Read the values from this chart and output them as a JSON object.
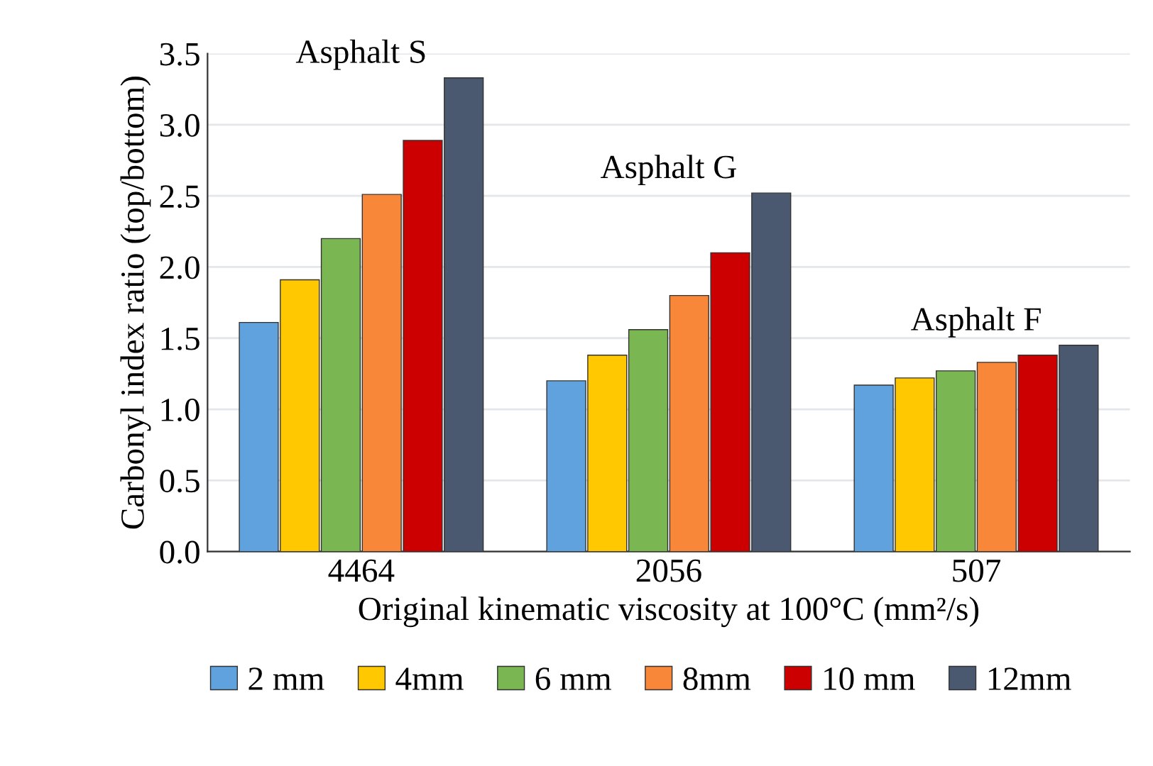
{
  "chart_data": {
    "type": "bar",
    "xlabel": "Original kinematic viscosity at 100°C (mm²/s)",
    "ylabel": "Carbonyl index ratio (top/bottom)",
    "categories": [
      "4464",
      "2056",
      "507"
    ],
    "series": [
      {
        "name": "2 mm",
        "color": "#5fa2dd",
        "values": [
          1.61,
          1.2,
          1.17
        ]
      },
      {
        "name": "4mm",
        "color": "#ffc800",
        "values": [
          1.91,
          1.38,
          1.22
        ]
      },
      {
        "name": "6 mm",
        "color": "#7ab651",
        "values": [
          2.2,
          1.56,
          1.27
        ]
      },
      {
        "name": "8mm",
        "color": "#f8873a",
        "values": [
          2.51,
          1.8,
          1.33
        ]
      },
      {
        "name": "10 mm",
        "color": "#cc0000",
        "values": [
          2.89,
          2.1,
          1.38
        ]
      },
      {
        "name": "12mm",
        "color": "#4a5870",
        "values": [
          3.33,
          2.52,
          1.45
        ]
      }
    ],
    "annotations": [
      "Asphalt S",
      "Asphalt G",
      "Asphalt F"
    ],
    "ylim": [
      0,
      3.5
    ],
    "yticks": [
      {
        "value": 0,
        "label": "0.0"
      },
      0.5,
      {
        "value": 1,
        "label": "1.0"
      },
      1.5,
      {
        "value": 2,
        "label": "2.0"
      },
      2.5,
      {
        "value": 3,
        "label": "3.0"
      },
      3.5
    ],
    "grid": "y",
    "legend": "bottom"
  }
}
